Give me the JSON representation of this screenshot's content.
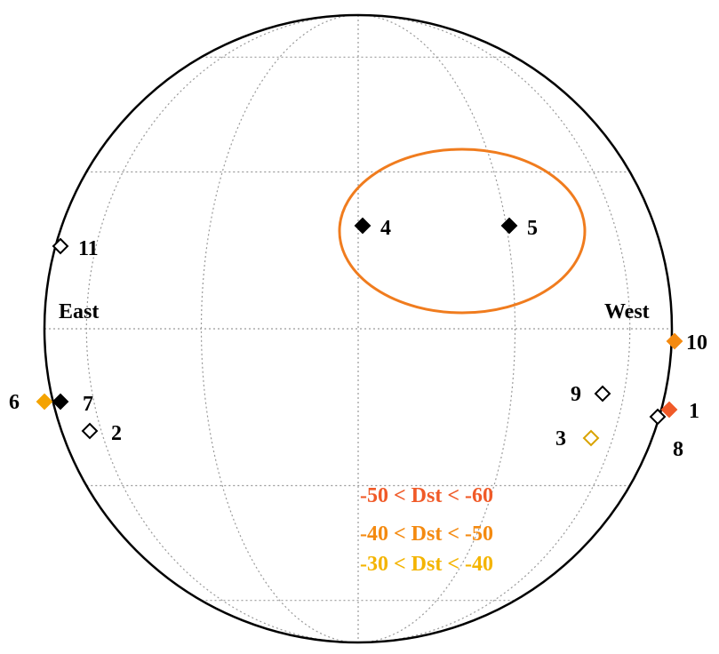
{
  "side_labels": {
    "east": "East",
    "west": "West"
  },
  "markers": [
    {
      "id": "1",
      "label": "1",
      "fill": "#f05a28",
      "stroke": "#f05a28",
      "filled": true
    },
    {
      "id": "2",
      "label": "2",
      "fill": "none",
      "stroke": "#000000",
      "filled": false
    },
    {
      "id": "3",
      "label": "3",
      "fill": "none",
      "stroke": "#d9a300",
      "filled": false
    },
    {
      "id": "4",
      "label": "4",
      "fill": "#000000",
      "stroke": "#000000",
      "filled": true
    },
    {
      "id": "5",
      "label": "5",
      "fill": "#000000",
      "stroke": "#000000",
      "filled": true
    },
    {
      "id": "6",
      "label": "6",
      "fill": "#f4a300",
      "stroke": "#f4a300",
      "filled": true
    },
    {
      "id": "7",
      "label": "7",
      "fill": "#000000",
      "stroke": "#000000",
      "filled": true
    },
    {
      "id": "8",
      "label": "8",
      "fill": "none",
      "stroke": "#000000",
      "filled": false
    },
    {
      "id": "9",
      "label": "9",
      "fill": "none",
      "stroke": "#000000",
      "filled": false
    },
    {
      "id": "10",
      "label": "10",
      "fill": "#f48a10",
      "stroke": "#f48a10",
      "filled": true
    },
    {
      "id": "11",
      "label": "11",
      "fill": "none",
      "stroke": "#000000",
      "filled": false
    }
  ],
  "legend": [
    {
      "text": "-50 < Dst < -60",
      "color": "#f05a28"
    },
    {
      "text": "-40 < Dst < -50",
      "color": "#f48a10"
    },
    {
      "text": "-30 < Dst < -40",
      "color": "#f4b400"
    }
  ],
  "highlight_color": "#f07c1e"
}
